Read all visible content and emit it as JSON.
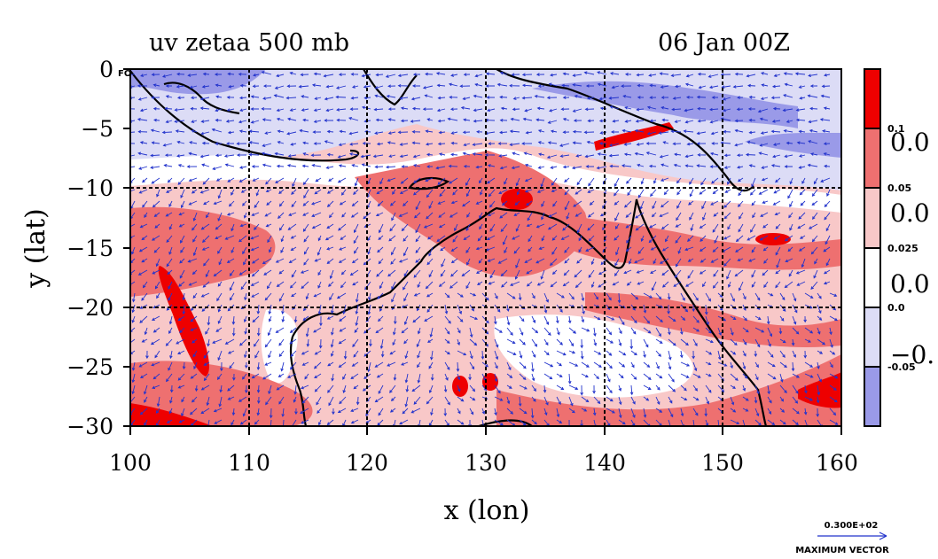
{
  "chart_data": {
    "type": "heatmap",
    "title_left": "uv zetaa 500 mb",
    "title_right": "06 Jan 00Z",
    "corner_label": "FO",
    "xlabel": "x (lon)",
    "ylabel": "y (lat)",
    "xlim": [
      100,
      160
    ],
    "ylim": [
      -30,
      0
    ],
    "xticks": [
      100,
      110,
      120,
      130,
      140,
      150,
      160
    ],
    "xtick_labels": [
      "100",
      "110",
      "120",
      "130",
      "140",
      "150",
      "160"
    ],
    "yticks": [
      0,
      -5,
      -10,
      -15,
      -20,
      -25,
      -30
    ],
    "ytick_labels": [
      "0",
      "−5",
      "−10",
      "−15",
      "−20",
      "−25",
      "−30"
    ],
    "gridlines_x": [
      110,
      120,
      130,
      140,
      150
    ],
    "gridlines_y": [
      -10,
      -20
    ],
    "colorbar": {
      "bins": [
        {
          "color": "#ee0000",
          "range": [
            0.1,
            null
          ]
        },
        {
          "color": "#ee7070",
          "range": [
            0.05,
            0.1
          ]
        },
        {
          "color": "#f8c8c8",
          "range": [
            0.025,
            0.05
          ]
        },
        {
          "color": "#ffffff",
          "range": [
            0.0,
            0.025
          ]
        },
        {
          "color": "#dcdcf6",
          "range": [
            -0.05,
            0.0
          ]
        },
        {
          "color": "#9a9ae8",
          "range": [
            null,
            -0.05
          ]
        }
      ],
      "small_labels": [
        "0.1",
        "0.05",
        "0.025",
        "0.0",
        "-0.05"
      ],
      "big_labels": [
        "0.0",
        "0.0",
        "0.0",
        "−0."
      ]
    },
    "vector_color": "#2233cc",
    "max_vector_label": "0.300E+02",
    "max_vector_caption": "MAXIMUM VECTOR"
  }
}
